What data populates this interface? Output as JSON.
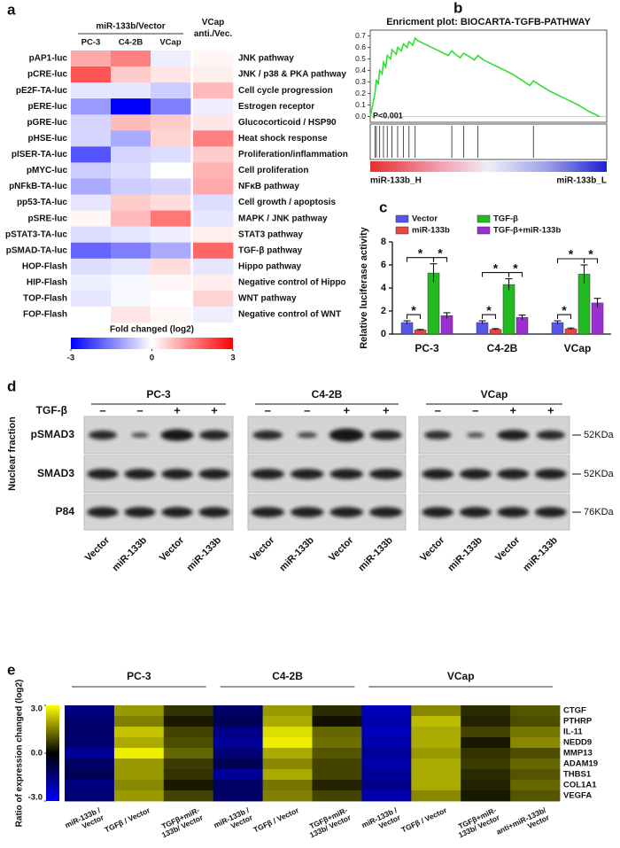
{
  "chart_data": [
    {
      "type": "heatmap",
      "panel": "a",
      "groups": [
        {
          "label": "miR-133b/Vector",
          "columns": [
            "PC-3",
            "C4-2B",
            "VCap"
          ]
        },
        {
          "label": "VCap anti./Vec.",
          "columns": [
            null
          ]
        }
      ],
      "rows": [
        "pAP1-luc",
        "pCRE-luc",
        "pE2F-TA-luc",
        "pERE-luc",
        "pGRE-luc",
        "pHSE-luc",
        "pISER-TA-luc",
        "pMYC-luc",
        "pNFkB-TA-luc",
        "pp53-TA-luc",
        "pSRE-luc",
        "pSTAT3-TA-luc",
        "pSMAD-TA-luc",
        "HOP-Flash",
        "HIP-Flash",
        "TOP-Flash",
        "FOP-Flash"
      ],
      "row_annotations": [
        "JNK pathway",
        "JNK / p38 & PKA pathway",
        "Cell cycle progression",
        "Estrogen receptor",
        "Glucocorticoid / HSP90",
        "Heat shock response",
        "Proliferation/inflammation",
        "Cell proliferation",
        "NFκB pathway",
        "Cell growth / apoptosis",
        "MAPK / JNK pathway",
        "STAT3 pathway",
        "TGF-β pathway",
        "Hippo pathway",
        "Negative control of Hippo",
        "WNT pathway",
        "Negative control of WNT"
      ],
      "values": [
        [
          1.0,
          1.5,
          -0.2,
          0.1
        ],
        [
          2.0,
          0.6,
          0.3,
          0.2
        ],
        [
          -0.3,
          -0.3,
          -0.6,
          0.8
        ],
        [
          -1.2,
          -3,
          -1.5,
          -0.2
        ],
        [
          -0.5,
          0.8,
          0.6,
          0.3
        ],
        [
          -0.5,
          -1.0,
          0.5,
          1.5
        ],
        [
          -2.0,
          -0.5,
          -0.4,
          0.6
        ],
        [
          -0.6,
          -0.4,
          0.0,
          0.9
        ],
        [
          -1.0,
          -0.6,
          -0.5,
          1.0
        ],
        [
          -0.3,
          0.6,
          0.4,
          -0.4
        ],
        [
          0.1,
          0.8,
          1.6,
          -0.3
        ],
        [
          -0.4,
          -0.3,
          -0.2,
          0.2
        ],
        [
          -1.8,
          -1.5,
          -1.0,
          1.8
        ],
        [
          -0.4,
          -0.3,
          0.4,
          -0.3
        ],
        [
          -0.2,
          -0.1,
          0.1,
          0.2
        ],
        [
          -0.3,
          -0.1,
          0.0,
          0.5
        ],
        [
          0.0,
          0.3,
          0.1,
          -0.2
        ]
      ],
      "colors": [
        "#0000ff",
        "#ffffff",
        "#ff0000"
      ],
      "zlim": [
        -3,
        3
      ],
      "zticks": [
        -3,
        0,
        3
      ],
      "colorbar_label": "Fold changed (log2)",
      "highlight_rows": [
        12
      ],
      "highlight_color": "#e02020"
    },
    {
      "type": "enrichment",
      "panel": "b",
      "title": "Enricment plot: BIOCARTA-TGFB-PATHWAY",
      "x": [
        0,
        1,
        2,
        2.6,
        3.4,
        4,
        5,
        5.6,
        6.6,
        7.2,
        8.6,
        9.2,
        11,
        11.6,
        13.2,
        14,
        15.6,
        16.4,
        18,
        19,
        20,
        22,
        24,
        27,
        30,
        33,
        34.5,
        36,
        38,
        39.5,
        42,
        44,
        45.5,
        48,
        51,
        54,
        57,
        60,
        63,
        66,
        67.5,
        69,
        72,
        76,
        80,
        84,
        88,
        92,
        95,
        97
      ],
      "values": [
        0,
        0.1,
        0.2,
        0.32,
        0.28,
        0.4,
        0.37,
        0.47,
        0.43,
        0.53,
        0.5,
        0.58,
        0.54,
        0.6,
        0.57,
        0.63,
        0.6,
        0.65,
        0.62,
        0.68,
        0.66,
        0.64,
        0.62,
        0.59,
        0.56,
        0.53,
        0.57,
        0.54,
        0.51,
        0.55,
        0.52,
        0.49,
        0.53,
        0.49,
        0.46,
        0.43,
        0.4,
        0.37,
        0.33,
        0.29,
        0.27,
        0.31,
        0.27,
        0.22,
        0.18,
        0.14,
        0.1,
        0.05,
        0.02,
        0.0
      ],
      "hits": [
        2,
        2.6,
        4,
        5.6,
        7.2,
        9.2,
        11.6,
        14,
        16.4,
        19,
        34.5,
        39.5,
        45.5,
        69
      ],
      "xlim": [
        0,
        100
      ],
      "ylim": [
        -0.05,
        0.75
      ],
      "yticks": [
        {
          "value": 0,
          "label": "0.0"
        },
        0.1,
        0.2,
        0.3,
        0.4,
        0.5,
        0.6,
        0.7
      ],
      "annotation": "P<0.001",
      "left_label": "miR-133b_H",
      "right_label": "miR-133b_L",
      "color": "#33dd33"
    },
    {
      "type": "bar",
      "panel": "c",
      "categories": [
        "PC-3",
        "C4-2B",
        "VCap"
      ],
      "series": [
        {
          "name": "Vector",
          "color": "#5555e8",
          "values": [
            1.0,
            1.0,
            1.0
          ],
          "errors": [
            0.15,
            0.15,
            0.15
          ]
        },
        {
          "name": "miR-133b",
          "color": "#e84444",
          "values": [
            0.35,
            0.4,
            0.45
          ],
          "errors": [
            0.05,
            0.07,
            0.07
          ]
        },
        {
          "name": "TGF-β",
          "color": "#22bb22",
          "values": [
            5.3,
            4.3,
            5.2
          ],
          "errors": [
            0.8,
            0.5,
            0.8
          ]
        },
        {
          "name": "TGF-β+miR-133b",
          "color": "#9b30d0",
          "values": [
            1.6,
            1.45,
            2.7
          ],
          "errors": [
            0.25,
            0.2,
            0.4
          ]
        }
      ],
      "ylim": [
        0,
        8
      ],
      "yticks": [
        0,
        2,
        4,
        6,
        8
      ],
      "ylabel": "Relative luciferase activity",
      "significance_label": "*"
    },
    {
      "type": "heatmap",
      "panel": "e",
      "groups": [
        {
          "label": "PC-3",
          "columns": [
            "miR-133b / Vector",
            "TGFβ / Vector",
            "TGFβ+miR-133b/ Vector"
          ]
        },
        {
          "label": "C4-2B",
          "columns": [
            "miR-133b / Vector",
            "TGFβ / Vector",
            "TGFβ+miR-133b/ Vector"
          ]
        },
        {
          "label": "VCap",
          "columns": [
            "miR-133b / Vector",
            "TGFβ / Vector",
            "TGFβ+miR-133b/ Vector",
            "anti+miR-133b/ Vector"
          ]
        }
      ],
      "rows": [
        "CTGF",
        "PTHRP",
        "IL-11",
        "NEDD9",
        "MMP13",
        "ADAM19",
        "THBS1",
        "COL1A1",
        "VEGFA"
      ],
      "values": [
        [
          -1.5,
          1.8,
          0.6,
          -1.2,
          1.8,
          0.5,
          -2.2,
          1.6,
          0.5,
          1.0
        ],
        [
          -1.3,
          1.5,
          0.3,
          -1.0,
          2.0,
          0.2,
          -2.0,
          2.2,
          0.4,
          0.9
        ],
        [
          -1.2,
          2.3,
          0.8,
          -1.6,
          2.6,
          1.2,
          -2.2,
          2.0,
          0.8,
          1.4
        ],
        [
          -1.3,
          2.0,
          0.9,
          -1.8,
          2.8,
          1.3,
          -2.0,
          2.0,
          0.3,
          1.6
        ],
        [
          -1.8,
          2.8,
          1.2,
          -1.4,
          2.0,
          1.0,
          -1.8,
          1.8,
          0.6,
          0.9
        ],
        [
          -1.2,
          1.8,
          0.7,
          -1.0,
          1.6,
          0.8,
          -2.0,
          2.0,
          0.7,
          1.2
        ],
        [
          -1.0,
          1.8,
          0.6,
          -1.8,
          2.0,
          0.8,
          -1.8,
          2.0,
          0.5,
          1.0
        ],
        [
          -1.5,
          1.6,
          0.3,
          -1.2,
          1.4,
          0.4,
          -1.6,
          2.0,
          0.4,
          1.2
        ],
        [
          -1.4,
          1.8,
          0.8,
          -1.2,
          1.5,
          0.8,
          -2.0,
          1.6,
          0.3,
          1.0
        ]
      ],
      "colors": [
        "#0000ff",
        "#000000",
        "#ffff00"
      ],
      "zlim": [
        -3,
        3
      ],
      "zticks": [
        {
          "value": 3,
          "label": "3.0"
        },
        {
          "value": 0,
          "label": "0.0"
        },
        {
          "value": -3,
          "label": "-3.0"
        }
      ],
      "ylabel": "Ratio of expression changed (log2)"
    }
  ],
  "blot": {
    "panel": "d",
    "groups": [
      "PC-3",
      "C4-2B",
      "VCap"
    ],
    "treatment": "TGF-β",
    "treatment_signs": [
      "–",
      "–",
      "+",
      "+"
    ],
    "fraction": "Nuclear fraction",
    "rows": [
      "pSMAD3",
      "SMAD3",
      "P84"
    ],
    "markers": [
      "52KDa",
      "52KDa",
      "76KDa"
    ],
    "lanes": [
      "Vector",
      "miR-133b",
      "Vector",
      "miR-133b"
    ]
  }
}
